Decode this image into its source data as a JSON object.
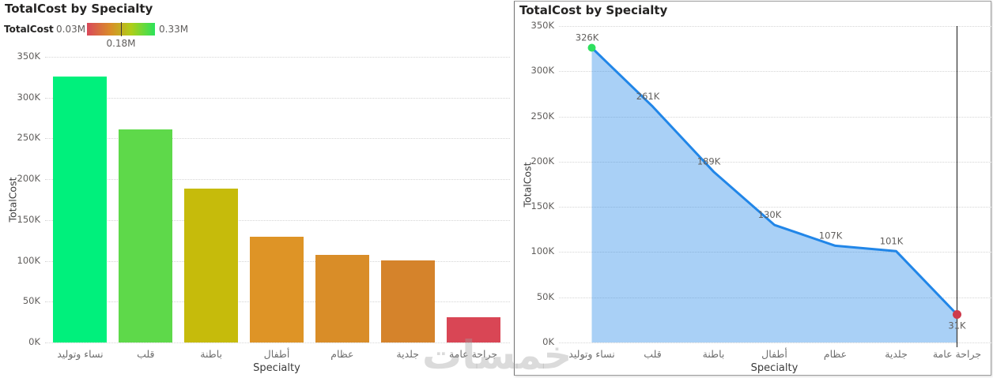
{
  "watermark_text": "خمسات",
  "chart_data": [
    {
      "type": "bar",
      "title": "TotalCost by Specialty",
      "xlabel": "Specialty",
      "ylabel": "TotalCost",
      "categories": [
        "نساء وتوليد",
        "قلب",
        "باطنة",
        "أطفال",
        "عظام",
        "جلدية",
        "جراحة عامة"
      ],
      "values": [
        326000,
        261000,
        189000,
        130000,
        107000,
        101000,
        31000
      ],
      "bar_colors": [
        "#00F07C",
        "#5ED94A",
        "#C6BB0B",
        "#DE9426",
        "#D98D28",
        "#D5832B",
        "#D94655"
      ],
      "ylim": [
        0,
        350000
      ],
      "ytick_step": 50000,
      "ytick_labels": [
        "0K",
        "50K",
        "100K",
        "150K",
        "200K",
        "250K",
        "300K",
        "350K"
      ],
      "grid": "horizontal-dotted",
      "legend": {
        "position": "top-left",
        "label": "TotalCost",
        "min_label": "0.03M",
        "mid_label": "0.18M",
        "max_label": "0.33M",
        "gradient_colors": [
          "#D9485A",
          "#D98E28",
          "#AFCE18",
          "#2BE35B"
        ]
      }
    },
    {
      "type": "area",
      "title": "TotalCost by Specialty",
      "xlabel": "Specialty",
      "ylabel": "TotalCost",
      "categories": [
        "نساء وتوليد",
        "قلب",
        "باطنة",
        "أطفال",
        "عظام",
        "جلدية",
        "جراحة عامة"
      ],
      "values": [
        326000,
        261000,
        189000,
        130000,
        107000,
        101000,
        31000
      ],
      "data_labels": [
        "326K",
        "261K",
        "189K",
        "130K",
        "107K",
        "101K",
        "31K"
      ],
      "ylim": [
        0,
        350000
      ],
      "ytick_step": 50000,
      "ytick_labels": [
        "0K",
        "50K",
        "100K",
        "150K",
        "200K",
        "250K",
        "300K",
        "350K"
      ],
      "grid": "horizontal-dotted",
      "line_color": "#2186E8",
      "fill_color": "#A9D2F7",
      "fill_opacity": 0.39,
      "first_marker_color": "#2EE05E",
      "last_marker_color": "#CE3A4C",
      "reference_line_category": "جراحة عامة",
      "reference_line_color": "#474747"
    }
  ]
}
